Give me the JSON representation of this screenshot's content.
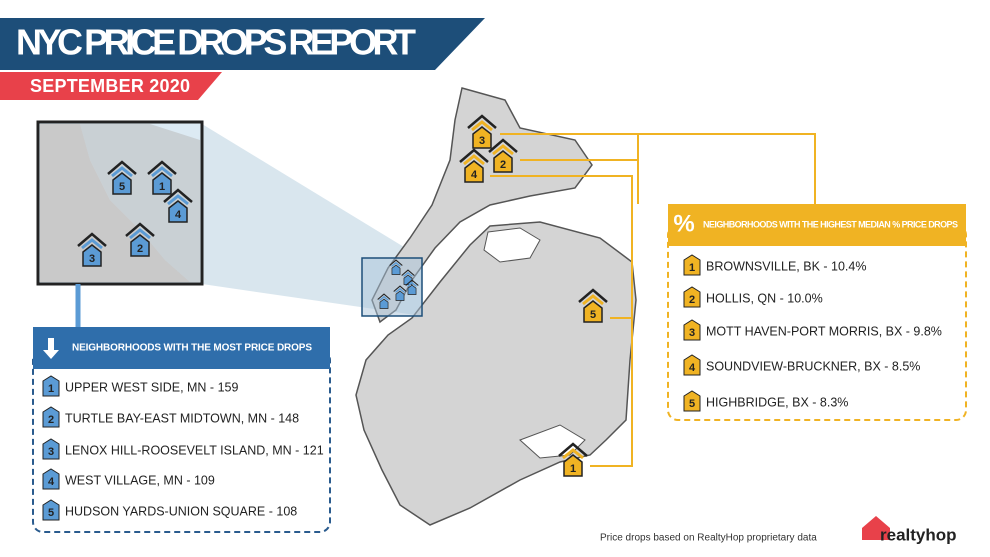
{
  "header": {
    "title": "NYC PRICE DROPS REPORT",
    "subtitle": "SEPTEMBER 2020"
  },
  "most_drops": {
    "title": "NEIGHBORHOODS WITH THE MOST PRICE DROPS",
    "items": [
      {
        "rank": "1",
        "label": "UPPER WEST SIDE, MN - 159"
      },
      {
        "rank": "2",
        "label": "TURTLE BAY-EAST MIDTOWN, MN - 148"
      },
      {
        "rank": "3",
        "label": "LENOX HILL-ROOSEVELT ISLAND, MN - 121"
      },
      {
        "rank": "4",
        "label": "WEST VILLAGE, MN - 109"
      },
      {
        "rank": "5",
        "label": "HUDSON YARDS-UNION SQUARE - 108"
      }
    ]
  },
  "highest_drops": {
    "icon": "%",
    "title": "NEIGHBORHOODS WITH THE HIGHEST MEDIAN % PRICE DROPS",
    "items": [
      {
        "rank": "1",
        "label": "BROWNSVILLE, BK - 10.4%"
      },
      {
        "rank": "2",
        "label": "HOLLIS, QN - 10.0%"
      },
      {
        "rank": "3",
        "label": "MOTT HAVEN-PORT MORRIS, BX - 9.8%"
      },
      {
        "rank": "4",
        "label": "SOUNDVIEW-BRUCKNER, BX - 8.5%"
      },
      {
        "rank": "5",
        "label": "HIGHBRIDGE, BX - 8.3%"
      }
    ]
  },
  "map_markers": [
    "3",
    "4",
    "2",
    "5",
    "1"
  ],
  "inset_markers": [
    "5",
    "1",
    "4",
    "3",
    "2"
  ],
  "footer": {
    "note": "Price drops based on RealtyHop proprietary data",
    "logo": "realtyhop"
  }
}
